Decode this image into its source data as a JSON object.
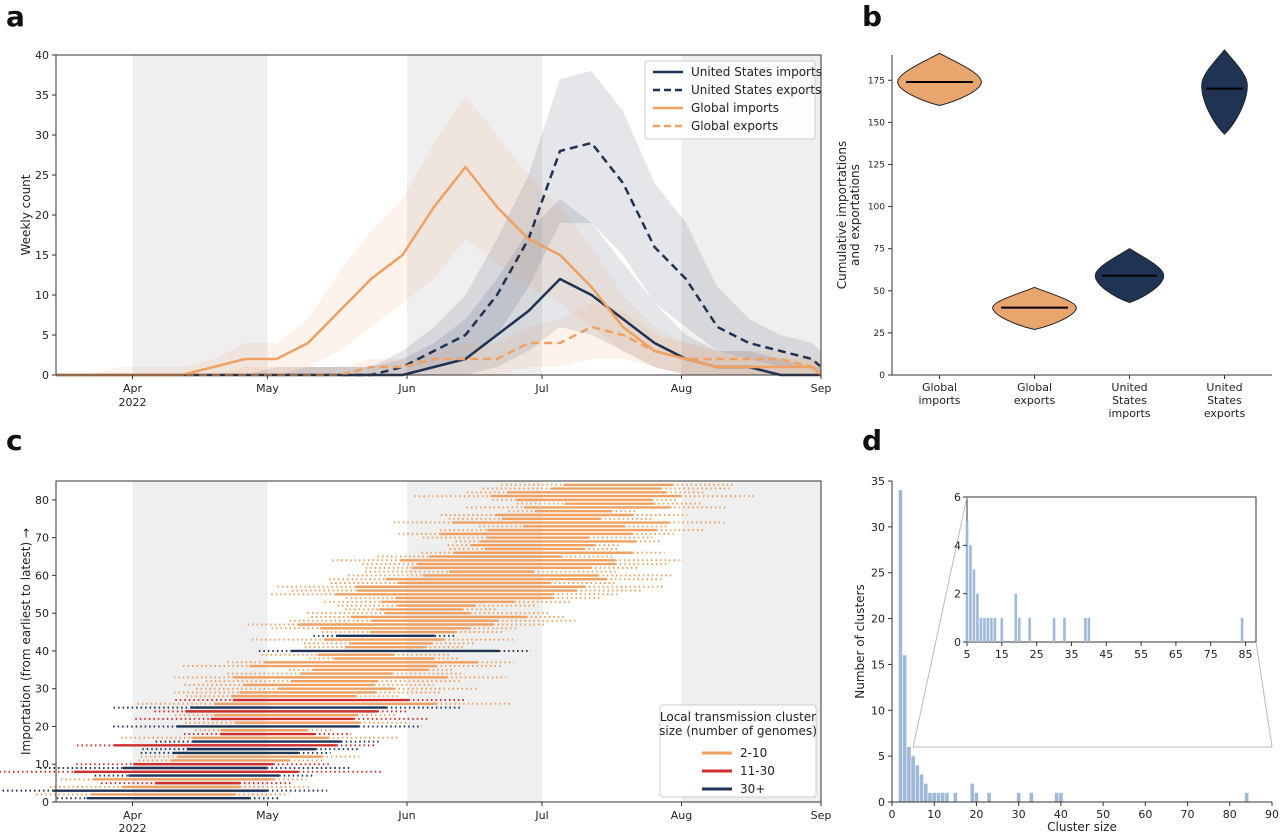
{
  "panels": {
    "a": "a",
    "b": "b",
    "c": "c",
    "d": "d"
  },
  "colors": {
    "us": "#1f3354",
    "global": "#f0a060",
    "red": "#cf2e2e",
    "shade": "#efefef",
    "hist": "#9fb9d8"
  },
  "chart_data": [
    {
      "id": "a",
      "type": "line",
      "xlabel": "",
      "ylabel": "Weekly count",
      "ylim": [
        0,
        40
      ],
      "yticks": [
        0,
        5,
        10,
        15,
        20,
        25,
        30,
        35,
        40
      ],
      "xticks": [
        {
          "label": "Apr",
          "sub": "2022",
          "day": 0
        },
        {
          "label": "May",
          "sub": "",
          "day": 30
        },
        {
          "label": "Jun",
          "sub": "",
          "day": 61
        },
        {
          "label": "Jul",
          "sub": "",
          "day": 91
        },
        {
          "label": "Aug",
          "sub": "",
          "day": 122
        },
        {
          "label": "Sep",
          "sub": "",
          "day": 153
        }
      ],
      "xrange_days": [
        -17,
        153
      ],
      "shaded_ranges": [
        [
          0,
          30
        ],
        [
          61,
          91
        ],
        [
          122,
          153
        ]
      ],
      "legend": {
        "placement": "top-right"
      },
      "x": [
        -17,
        -10,
        -3,
        4,
        11,
        18,
        25,
        32,
        39,
        46,
        53,
        60,
        67,
        74,
        81,
        88,
        95,
        102,
        109,
        116,
        123,
        130,
        137,
        144,
        151,
        153
      ],
      "series": [
        {
          "name": "United States imports",
          "style": "solid",
          "color": "#1f3354",
          "values": [
            0,
            0,
            0,
            0,
            0,
            0,
            0,
            0,
            0,
            0,
            0,
            0,
            1,
            2,
            5,
            8,
            12,
            10,
            7,
            4,
            2,
            1,
            1,
            0,
            0,
            0
          ],
          "band_low": [
            0,
            0,
            0,
            0,
            0,
            0,
            0,
            0,
            0,
            0,
            0,
            0,
            0,
            0,
            1,
            3,
            6,
            5,
            3,
            1,
            0,
            0,
            0,
            0,
            0,
            0
          ],
          "band_high": [
            0,
            0,
            0,
            0,
            0,
            0,
            0,
            0,
            1,
            1,
            1,
            2,
            4,
            7,
            12,
            18,
            22,
            19,
            14,
            9,
            5,
            3,
            3,
            2,
            1,
            1
          ]
        },
        {
          "name": "United States exports",
          "style": "dashed",
          "color": "#1f3354",
          "values": [
            0,
            0,
            0,
            0,
            0,
            0,
            0,
            0,
            0,
            0,
            0,
            1,
            3,
            5,
            10,
            17,
            28,
            29,
            24,
            16,
            12,
            6,
            4,
            3,
            2,
            1
          ],
          "band_low": [
            0,
            0,
            0,
            0,
            0,
            0,
            0,
            0,
            0,
            0,
            0,
            0,
            1,
            2,
            5,
            11,
            19,
            19,
            15,
            9,
            6,
            3,
            2,
            1,
            1,
            0
          ],
          "band_high": [
            0,
            0,
            0,
            0,
            0,
            0,
            0,
            1,
            1,
            1,
            1,
            3,
            6,
            10,
            17,
            25,
            37,
            38,
            33,
            24,
            19,
            11,
            7,
            5,
            4,
            3
          ]
        },
        {
          "name": "Global imports",
          "style": "solid",
          "color": "#f0a060",
          "values": [
            0,
            0,
            0,
            0,
            0,
            1,
            2,
            2,
            4,
            8,
            12,
            15,
            21,
            26,
            21,
            17,
            15,
            11,
            6,
            3,
            2,
            1,
            1,
            1,
            1,
            0
          ],
          "band_low": [
            0,
            0,
            0,
            0,
            0,
            0,
            0,
            0,
            1,
            3,
            6,
            9,
            12,
            17,
            14,
            11,
            9,
            6,
            3,
            1,
            0,
            0,
            0,
            0,
            0,
            0
          ],
          "band_high": [
            0,
            0,
            1,
            1,
            1,
            2,
            4,
            4,
            7,
            13,
            18,
            22,
            29,
            35,
            30,
            25,
            21,
            16,
            10,
            6,
            4,
            3,
            2,
            2,
            2,
            1
          ]
        },
        {
          "name": "Global exports",
          "style": "dashed",
          "color": "#f0a060",
          "values": [
            0,
            0,
            0,
            0,
            0,
            0,
            0,
            0,
            0,
            0,
            1,
            1,
            2,
            2,
            2,
            4,
            4,
            6,
            5,
            3,
            2,
            2,
            2,
            2,
            1,
            1
          ],
          "band_low": [
            0,
            0,
            0,
            0,
            0,
            0,
            0,
            0,
            0,
            0,
            0,
            0,
            0,
            0,
            0,
            1,
            1,
            2,
            2,
            1,
            0,
            0,
            0,
            0,
            0,
            0
          ],
          "band_high": [
            0,
            0,
            0,
            0,
            0,
            0,
            1,
            1,
            1,
            1,
            2,
            2,
            3,
            4,
            4,
            6,
            7,
            9,
            8,
            5,
            4,
            3,
            3,
            3,
            2,
            2
          ]
        }
      ]
    },
    {
      "id": "b",
      "type": "violin",
      "ylabel": "Cumulative importations\nand exportations",
      "ylim": [
        0,
        190
      ],
      "yticks": [
        0,
        25,
        50,
        75,
        100,
        125,
        150,
        175
      ],
      "categories": [
        "Global\nimports",
        "Global\nexports",
        "United\nStates\nimports",
        "United\nStates\nexports"
      ],
      "violins": [
        {
          "min": 160,
          "max": 191,
          "median": 174,
          "widest": 174,
          "halfwidth": 0.22,
          "color": "#e8a56e"
        },
        {
          "min": 27,
          "max": 52,
          "median": 40,
          "widest": 40,
          "halfwidth": 0.22,
          "color": "#e8a56e"
        },
        {
          "min": 43,
          "max": 75,
          "median": 59,
          "widest": 59,
          "halfwidth": 0.18,
          "color": "#1f3354"
        },
        {
          "min": 143,
          "max": 193,
          "median": 170,
          "widest": 172,
          "halfwidth": 0.12,
          "color": "#1f3354"
        }
      ]
    },
    {
      "id": "c",
      "type": "range",
      "ylabel": "Importation (from earliest to latest) →",
      "ylim": [
        0,
        85
      ],
      "yticks": [
        0,
        10,
        20,
        30,
        40,
        50,
        60,
        70,
        80
      ],
      "xrange_days": [
        -17,
        153
      ],
      "shaded_ranges": [
        [
          0,
          30
        ],
        [
          61,
          91
        ],
        [
          122,
          153
        ]
      ],
      "legend": {
        "placement": "bottom-right",
        "title": "Local transmission cluster\nsize (number of genomes)",
        "entries": [
          {
            "label": "2-10",
            "color": "#f0a060"
          },
          {
            "label": "11-30",
            "color": "#cf2e2e"
          },
          {
            "label": "30+",
            "color": "#1f3354"
          }
        ]
      },
      "n_importations": 84,
      "large_clusters": {
        "red": [
          5,
          8,
          10,
          15,
          18,
          22,
          24,
          27
        ],
        "navy": [
          1,
          3,
          7,
          9,
          13,
          14,
          16,
          20,
          25,
          40,
          44
        ]
      }
    },
    {
      "id": "d",
      "type": "histogram",
      "xlabel": "Cluster size",
      "ylabel": "Number of clusters",
      "xlim": [
        0,
        90
      ],
      "ylim": [
        0,
        35
      ],
      "xticks": [
        0,
        10,
        20,
        30,
        40,
        50,
        60,
        70,
        80,
        90
      ],
      "yticks": [
        0,
        5,
        10,
        15,
        20,
        25,
        30,
        35
      ],
      "bins": [
        {
          "x": 2,
          "count": 34
        },
        {
          "x": 3,
          "count": 16
        },
        {
          "x": 4,
          "count": 6
        },
        {
          "x": 5,
          "count": 5
        },
        {
          "x": 6,
          "count": 4
        },
        {
          "x": 7,
          "count": 3
        },
        {
          "x": 8,
          "count": 2
        },
        {
          "x": 9,
          "count": 1
        },
        {
          "x": 10,
          "count": 1
        },
        {
          "x": 11,
          "count": 1
        },
        {
          "x": 12,
          "count": 1
        },
        {
          "x": 13,
          "count": 1
        },
        {
          "x": 15,
          "count": 1
        },
        {
          "x": 19,
          "count": 2
        },
        {
          "x": 20,
          "count": 1
        },
        {
          "x": 23,
          "count": 1
        },
        {
          "x": 30,
          "count": 1
        },
        {
          "x": 33,
          "count": 1
        },
        {
          "x": 39,
          "count": 1
        },
        {
          "x": 40,
          "count": 1
        },
        {
          "x": 84,
          "count": 1
        }
      ],
      "inset": {
        "xlim": [
          5,
          88
        ],
        "ylim": [
          0,
          6
        ],
        "xticks": [
          5,
          15,
          25,
          35,
          45,
          55,
          65,
          75,
          85
        ],
        "yticks": [
          0,
          2,
          4,
          6
        ]
      }
    }
  ]
}
